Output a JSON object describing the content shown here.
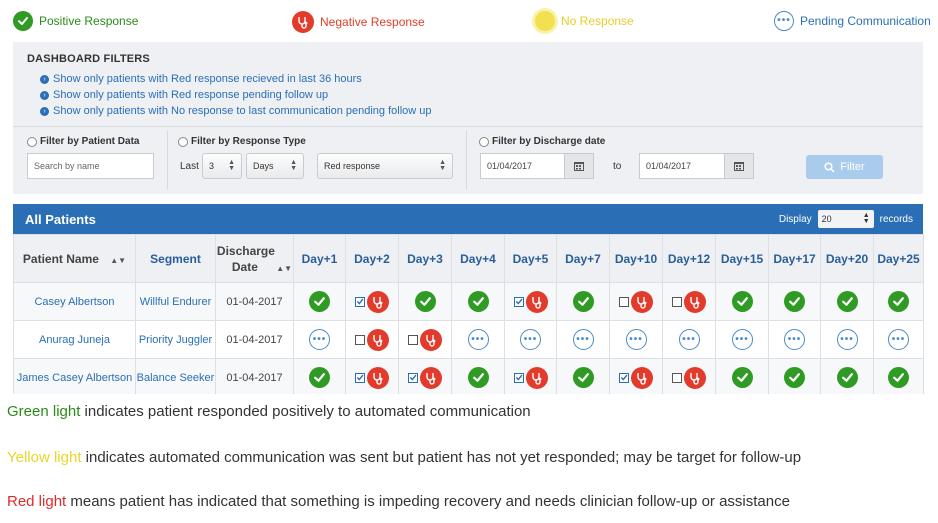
{
  "legend": {
    "positive": "Positive Response",
    "negative": "Negative Response",
    "none": "No Response",
    "pending": "Pending Communication"
  },
  "filters": {
    "title": "DASHBOARD FILTERS",
    "links": [
      "Show only patients with Red response recieved in last 36 hours",
      "Show only patients with Red response pending follow up",
      "Show only patients with No response to last communication pending follow up"
    ],
    "patient_data_label": "Filter by Patient Data",
    "search_placeholder": "Search by name",
    "response_type_label": "Filter by Response Type",
    "last_label": "Last",
    "last_value": "3",
    "period_value": "Days",
    "response_value": "Red response",
    "discharge_label": "Filter by Discharge date",
    "date_from": "01/04/2017",
    "to_label": "to",
    "date_to": "01/04/2017",
    "filter_button": "Filter"
  },
  "table": {
    "title": "All Patients",
    "display_label": "Display",
    "display_value": "20",
    "records_label": "records",
    "headers": {
      "name": "Patient Name",
      "segment": "Segment",
      "discharge": "Discharge Date",
      "days": [
        "Day+1",
        "Day+2",
        "Day+3",
        "Day+4",
        "Day+5",
        "Day+7",
        "Day+10",
        "Day+12",
        "Day+15",
        "Day+17",
        "Day+20",
        "Day+25"
      ]
    },
    "rows": [
      {
        "name": "Casey Albertson",
        "segment": "Willful Endurer",
        "date": "01-04-2017",
        "cells": [
          "pos",
          "neg-checked",
          "pos",
          "pos",
          "neg-checked",
          "pos",
          "neg-unchecked",
          "neg-unchecked",
          "pos",
          "pos",
          "pos",
          "pos"
        ]
      },
      {
        "name": "Anurag Juneja",
        "segment": "Priority Juggler",
        "date": "01-04-2017",
        "cells": [
          "pend",
          "neg-unchecked",
          "neg-unchecked",
          "pend",
          "pend",
          "pend",
          "pend",
          "pend",
          "pend",
          "pend",
          "pend",
          "pend"
        ]
      },
      {
        "name": "James Casey Albertson",
        "segment": "Balance Seeker",
        "date": "01-04-2017",
        "cells": [
          "pos",
          "neg-checked",
          "neg-checked",
          "pos",
          "neg-checked",
          "pos",
          "neg-checked",
          "neg-unchecked",
          "pos",
          "pos",
          "pos",
          "pos"
        ]
      }
    ]
  },
  "captions": {
    "green_word": "Green light",
    "green_text": " indicates patient responded positively to automated communication",
    "yellow_word": "Yellow light",
    "yellow_text": " indicates automated communication was sent but patient has not yet responded; may be target for follow-up",
    "red_word": "Red light",
    "red_text": " means patient has indicated that something is impeding recovery and needs clinician follow-up or assistance"
  },
  "colors": {
    "positive": "#2f9a24",
    "negative": "#e23b2c",
    "none": "#f3e050",
    "pending": "#4a8cc9",
    "header_blue": "#2a6fb5"
  }
}
